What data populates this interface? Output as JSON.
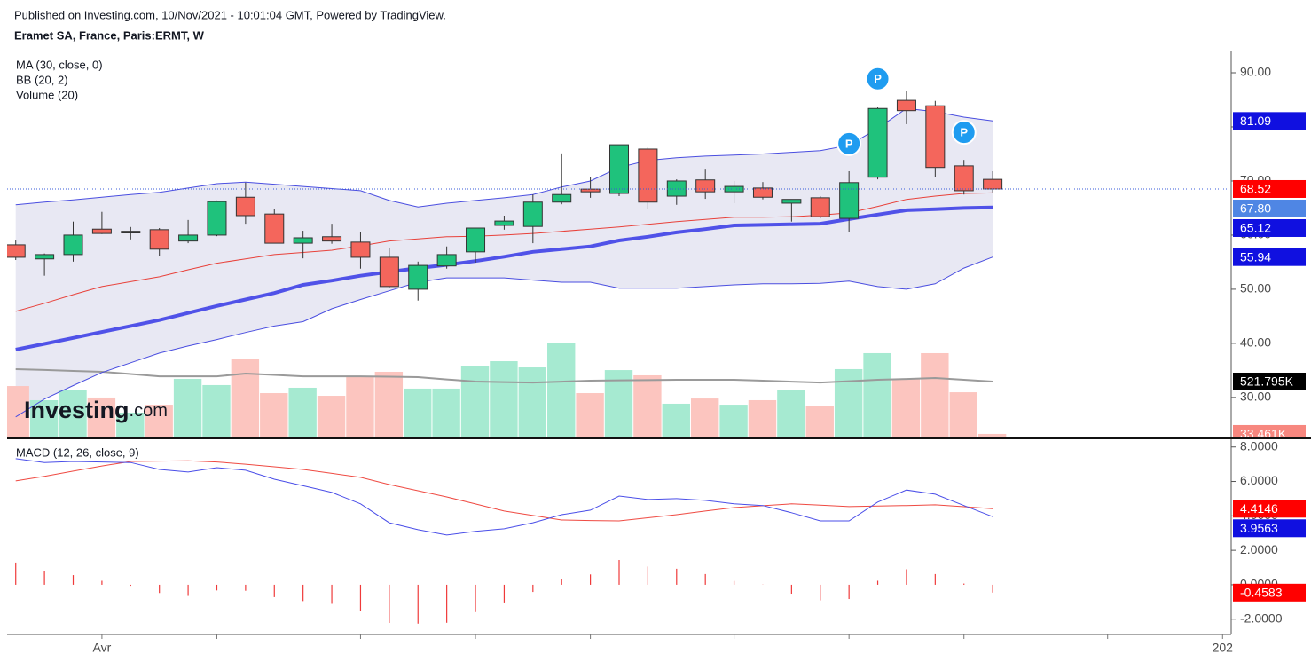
{
  "chart_data": [
    {
      "type": "candlestick",
      "subtitle": "Published on Investing.com, 10/Nov/2021 - 10:01:04 GMT, Powered by TradingView.",
      "title": "Eramet SA, France, Paris:ERMT, W",
      "logo": {
        "brand": "Investing",
        "suffix": ".com"
      },
      "xlim": [
        -0.3,
        42.3
      ],
      "xticks": [
        {
          "value": 3,
          "label": "Avr"
        },
        {
          "value": 7,
          "label": null
        },
        {
          "value": 12,
          "label": null
        },
        {
          "value": 16,
          "label": null
        },
        {
          "value": 20,
          "label": null
        },
        {
          "value": 25,
          "label": null
        },
        {
          "value": 29,
          "label": null
        },
        {
          "value": 33,
          "label": null
        },
        {
          "value": 38,
          "label": null
        },
        {
          "value": 42,
          "label": "202"
        }
      ],
      "ylim": [
        22.6,
        94.1
      ],
      "yticks": [
        {
          "value": 30,
          "label": "30.00"
        },
        {
          "value": 40,
          "label": "40.00"
        },
        {
          "value": 50,
          "label": "50.00"
        },
        {
          "value": 60,
          "label": "60.00"
        },
        {
          "value": 70,
          "label": "70.00"
        },
        {
          "value": 80,
          "label": "80.00"
        },
        {
          "value": 90,
          "label": "90.00"
        }
      ],
      "up_color": "#1fc27c",
      "down_color": "#f4665c",
      "last_price_line": true,
      "last_price_color": "#ff0000",
      "open": [
        58.2,
        55.6,
        56.4,
        61.1,
        60.4,
        61.0,
        58.9,
        60.0,
        67.0,
        63.9,
        58.5,
        59.7,
        58.7,
        55.9,
        50.0,
        54.3,
        56.9,
        61.8,
        61.6,
        66.1,
        68.5,
        67.7,
        75.9,
        67.2,
        70.2,
        68.0,
        68.7,
        65.9,
        66.9,
        63.1,
        70.7,
        84.9,
        83.9,
        72.8,
        70.3
      ],
      "high": [
        59.0,
        56.6,
        62.5,
        64.3,
        61.5,
        61.3,
        62.8,
        66.4,
        69.7,
        64.9,
        60.8,
        62.1,
        60.5,
        57.7,
        55.1,
        57.9,
        61.3,
        63.6,
        67.5,
        75.1,
        70.7,
        76.7,
        76.2,
        70.3,
        72.1,
        70.0,
        69.8,
        66.6,
        67.2,
        71.8,
        83.6,
        86.7,
        84.8,
        73.9,
        71.8
      ],
      "low": [
        55.4,
        52.5,
        55.1,
        60.2,
        59.2,
        56.2,
        58.5,
        59.8,
        62.1,
        58.5,
        55.7,
        58.4,
        53.8,
        50.3,
        47.9,
        53.8,
        54.9,
        61.0,
        58.5,
        65.7,
        66.9,
        67.2,
        64.9,
        65.6,
        66.7,
        65.9,
        66.6,
        62.5,
        63.1,
        60.5,
        70.3,
        80.5,
        70.7,
        67.5,
        67.9
      ],
      "close": [
        55.9,
        56.4,
        60.0,
        60.3,
        60.7,
        57.4,
        60.0,
        66.2,
        63.6,
        58.5,
        59.5,
        58.9,
        55.9,
        50.5,
        54.4,
        56.4,
        61.3,
        62.6,
        66.1,
        67.5,
        68.0,
        76.7,
        66.1,
        70.0,
        68.0,
        69.0,
        67.0,
        66.6,
        63.4,
        69.7,
        83.4,
        83.0,
        72.5,
        68.2,
        68.52
      ],
      "overlays": [
        {
          "name": "MA (30, close, 0)",
          "lines": [
            {
              "color": "#5052e8",
              "label_color": "#1010e0",
              "values": [
                38.85,
                39.9,
                41.0,
                42.1,
                43.2,
                44.3,
                45.6,
                46.9,
                48.1,
                49.3,
                50.8,
                51.6,
                52.5,
                53.2,
                53.9,
                54.5,
                55.2,
                56.0,
                56.9,
                57.4,
                57.9,
                59.0,
                59.7,
                60.5,
                61.1,
                61.8,
                61.9,
                62.0,
                62.1,
                62.95,
                63.8,
                64.6,
                64.8,
                65.0,
                65.12
              ]
            }
          ]
        },
        {
          "name": "BB (20, 2)",
          "fill": "#e4e4f1",
          "lines": [
            {
              "color": "#4a4ee0",
              "label_color": "#1010e0",
              "values": [
                65.6,
                66.1,
                66.5,
                67.0,
                67.5,
                67.9,
                68.7,
                69.5,
                69.8,
                69.4,
                69.0,
                68.6,
                68.2,
                66.4,
                65.2,
                65.9,
                66.4,
                66.9,
                67.5,
                68.9,
                70.0,
                72.5,
                73.8,
                74.3,
                74.6,
                74.8,
                75.0,
                75.3,
                75.6,
                76.6,
                79.7,
                83.4,
                82.8,
                81.8,
                81.09
              ]
            },
            {
              "color": "#e8413a",
              "label_color": "#4f86e4",
              "values": [
                45.9,
                47.4,
                49.0,
                50.5,
                51.4,
                52.3,
                53.6,
                54.8,
                55.6,
                56.4,
                56.8,
                57.2,
                58.0,
                58.9,
                59.3,
                59.7,
                59.8,
                60.0,
                60.3,
                60.7,
                61.1,
                61.5,
                62.0,
                62.5,
                62.9,
                63.3,
                63.3,
                63.4,
                63.7,
                64.1,
                65.3,
                66.6,
                67.2,
                67.7,
                67.8
              ],
              "value_labels": {
                "34": "67.80"
              }
            },
            {
              "color": "#4a4ee0",
              "label_color": "#1010e0",
              "values": [
                26.4,
                29.7,
                32.2,
                34.6,
                36.4,
                38.2,
                39.5,
                40.7,
                42.0,
                43.2,
                44.0,
                46.4,
                48.1,
                49.7,
                51.3,
                52.1,
                52.1,
                52.1,
                51.7,
                51.3,
                51.3,
                50.2,
                50.2,
                50.2,
                50.5,
                50.8,
                51.0,
                51.0,
                51.1,
                51.5,
                50.5,
                50.0,
                51.0,
                53.9,
                55.94
              ]
            }
          ]
        }
      ],
      "volume": {
        "name": "Volume (20)",
        "ylim": [
          0,
          3611000
        ],
        "up_color": "#a6ead1",
        "down_color": "#fcc5bf",
        "label_color": "#f7877f",
        "values": [
          480000,
          348000,
          447000,
          373000,
          232000,
          306000,
          547000,
          489000,
          729000,
          414000,
          464000,
          389000,
          563000,
          613000,
          456000,
          456000,
          663000,
          712000,
          654000,
          878000,
          414000,
          629000,
          580000,
          315000,
          364000,
          306000,
          348000,
          447000,
          298000,
          638000,
          787000,
          547000,
          787000,
          422000,
          33461
        ],
        "value_labels": {
          "34": "33.461K"
        },
        "ma": {
          "color": "#9a9a9a",
          "label_color": "#000000",
          "values": [
            638000,
            630000,
            621000,
            613000,
            592000,
            571000,
            571000,
            571000,
            596000,
            584000,
            571000,
            571000,
            571000,
            567000,
            563000,
            542000,
            522000,
            517000,
            513000,
            521000,
            530000,
            533000,
            535000,
            538000,
            538000,
            538000,
            530000,
            521000,
            513000,
            525000,
            538000,
            546000,
            555000,
            538000,
            521795
          ],
          "value_labels": {
            "34": "521.795K"
          }
        }
      },
      "annotations": [
        {
          "x": 29,
          "y": 76.9,
          "label": "P"
        },
        {
          "x": 30,
          "y": 88.9,
          "label": "P"
        },
        {
          "x": 33,
          "y": 79.0,
          "label": "P"
        }
      ]
    },
    {
      "type": "macd",
      "title": "MACD (12, 26, close, 9)",
      "ylim": [
        -2.89,
        8.45
      ],
      "yticks": [
        {
          "value": -2,
          "label": "-2.0000"
        },
        {
          "value": 0,
          "label": "0.0000"
        },
        {
          "value": 2,
          "label": "2.0000"
        },
        {
          "value": 4,
          "label": "4.0000"
        },
        {
          "value": 6,
          "label": "6.0000"
        },
        {
          "value": 8,
          "label": "8.0000"
        }
      ],
      "macd": {
        "color": "#4a4ee8",
        "label_color": "#1010e0",
        "values": [
          7.32,
          7.1,
          7.16,
          7.13,
          7.1,
          6.7,
          6.55,
          6.8,
          6.65,
          6.13,
          5.75,
          5.36,
          4.7,
          3.6,
          3.2,
          2.89,
          3.1,
          3.25,
          3.6,
          4.07,
          4.33,
          5.15,
          4.95,
          5.0,
          4.9,
          4.7,
          4.6,
          4.18,
          3.71,
          3.71,
          4.8,
          5.5,
          5.26,
          4.6,
          3.9563
        ]
      },
      "signal": {
        "color": "#ef4a42",
        "label_color": "#ff0000",
        "values": [
          6.03,
          6.3,
          6.6,
          6.9,
          7.16,
          7.18,
          7.2,
          7.13,
          7.0,
          6.85,
          6.7,
          6.47,
          6.24,
          5.82,
          5.46,
          5.1,
          4.69,
          4.28,
          4.02,
          3.76,
          3.73,
          3.71,
          3.89,
          4.07,
          4.28,
          4.48,
          4.59,
          4.7,
          4.62,
          4.54,
          4.57,
          4.6,
          4.64,
          4.53,
          4.4146
        ]
      },
      "histogram": {
        "color": "#ef3a3a",
        "label_color": "#ff0000",
        "values": [
          1.29,
          0.8,
          0.56,
          0.23,
          -0.06,
          -0.48,
          -0.65,
          -0.33,
          -0.35,
          -0.72,
          -0.95,
          -1.11,
          -1.54,
          -2.22,
          -2.26,
          -2.21,
          -1.59,
          -1.03,
          -0.42,
          0.31,
          0.6,
          1.44,
          1.06,
          0.93,
          0.62,
          0.22,
          0.01,
          -0.52,
          -0.91,
          -0.83,
          0.23,
          0.9,
          0.62,
          0.07,
          -0.4583
        ]
      }
    }
  ]
}
